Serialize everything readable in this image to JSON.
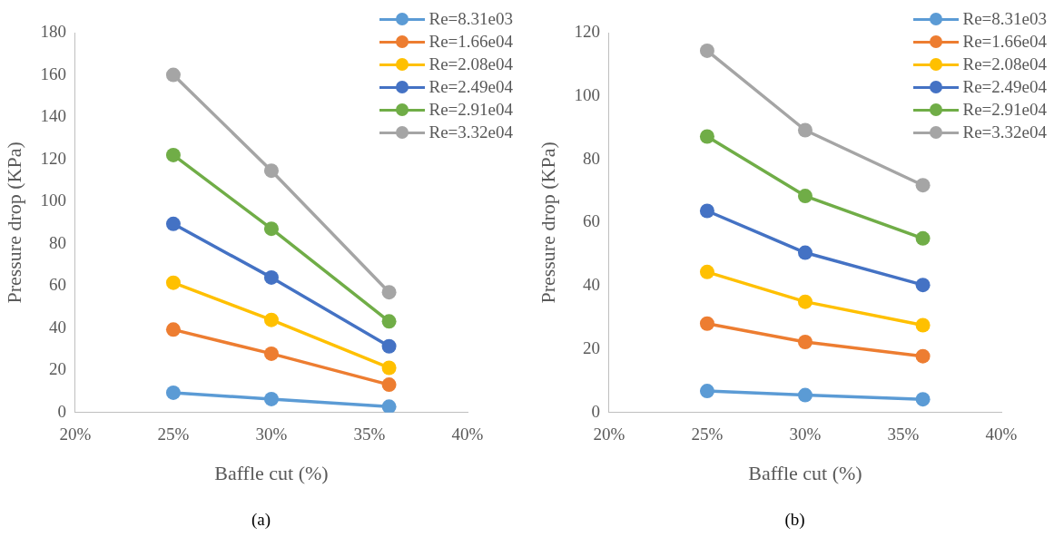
{
  "chart_data": [
    {
      "type": "line",
      "xlabel": "Baffle cut (%)",
      "ylabel": "Pressure drop (KPa)",
      "annotations": [
        "(a)"
      ],
      "x": [
        25,
        30,
        36
      ],
      "xlim": [
        20,
        40
      ],
      "xticks": [
        {
          "value": 20,
          "label": "20%"
        },
        {
          "value": 25,
          "label": "25%"
        },
        {
          "value": 30,
          "label": "30%"
        },
        {
          "value": 35,
          "label": "35%"
        },
        {
          "value": 40,
          "label": "40%"
        }
      ],
      "ylim": [
        0,
        180
      ],
      "yticks": [
        0,
        20,
        40,
        60,
        80,
        100,
        120,
        140,
        160,
        180
      ],
      "grid": false,
      "legend": "top right",
      "marker": "circle",
      "line_style": "solid",
      "series": [
        {
          "name": "Re=8.31e03",
          "color": "#5b9bd5",
          "values": [
            9.4,
            6.4,
            2.8
          ]
        },
        {
          "name": "Re=1.66e04",
          "color": "#ed7d31",
          "values": [
            39.3,
            27.9,
            13.2
          ]
        },
        {
          "name": "Re=2.08e04",
          "color": "#ffc000",
          "values": [
            61.5,
            43.9,
            21.2
          ]
        },
        {
          "name": "Re=2.49e04",
          "color": "#4472c4",
          "values": [
            89.4,
            64,
            31.4
          ]
        },
        {
          "name": "Re=2.91e04",
          "color": "#70ad47",
          "values": [
            122,
            87.1,
            43.2
          ]
        },
        {
          "name": "Re=3.32e04",
          "color": "#a5a5a5",
          "values": [
            160,
            114.6,
            57
          ]
        }
      ]
    },
    {
      "type": "line",
      "xlabel": "Baffle cut (%)",
      "ylabel": "Pressure drop (KPa)",
      "annotations": [
        "(b)"
      ],
      "x": [
        25,
        30,
        36
      ],
      "xlim": [
        20,
        40
      ],
      "xticks": [
        {
          "value": 20,
          "label": "20%"
        },
        {
          "value": 25,
          "label": "25%"
        },
        {
          "value": 30,
          "label": "30%"
        },
        {
          "value": 35,
          "label": "35%"
        },
        {
          "value": 40,
          "label": "40%"
        }
      ],
      "ylim": [
        0,
        120
      ],
      "yticks": [
        0,
        20,
        40,
        60,
        80,
        100,
        120
      ],
      "grid": false,
      "legend": "top right",
      "marker": "circle",
      "line_style": "solid",
      "series": [
        {
          "name": "Re=8.31e03",
          "color": "#5b9bd5",
          "values": [
            6.8,
            5.5,
            4.2
          ]
        },
        {
          "name": "Re=1.66e04",
          "color": "#ed7d31",
          "values": [
            28.1,
            22.3,
            17.8
          ]
        },
        {
          "name": "Re=2.08e04",
          "color": "#ffc000",
          "values": [
            44.4,
            35,
            27.6
          ]
        },
        {
          "name": "Re=2.49e04",
          "color": "#4472c4",
          "values": [
            63.7,
            50.5,
            40.3
          ]
        },
        {
          "name": "Re=2.91e04",
          "color": "#70ad47",
          "values": [
            87.2,
            68.4,
            55
          ]
        },
        {
          "name": "Re=3.32e04",
          "color": "#a5a5a5",
          "values": [
            114.3,
            89.2,
            71.8
          ]
        }
      ]
    }
  ]
}
